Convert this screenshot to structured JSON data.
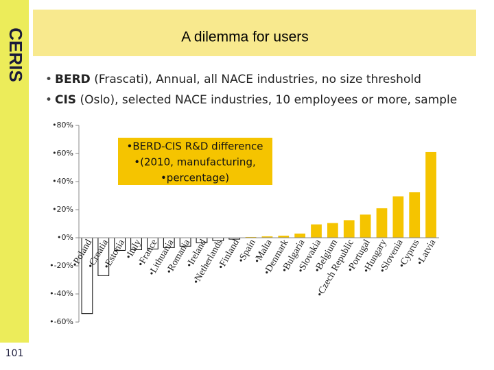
{
  "logo": "CERIS",
  "slide_number": "101",
  "title": "A dilemma for users",
  "bullets": [
    {
      "bold": "BERD",
      "text": "(Frascati), Annual, all NACE industries, no size threshold"
    },
    {
      "bold": "CIS",
      "text": "(Oslo), selected NACE industries, 10 employees or more, sample"
    }
  ],
  "chart_data": {
    "type": "bar",
    "annotation": [
      "•BERD-CIS R&D difference",
      "•(2010, manufacturing,",
      "•percentage)"
    ],
    "categories": [
      "•Poland",
      "•Croatia",
      "•Estonia",
      "•Italy",
      "•France",
      "•Lithuania",
      "•Romania",
      "•Ireland",
      "•Netherlands",
      "•Finland",
      "•Spain",
      "•Malta",
      "•Denmark",
      "•Bulgaria",
      "•Slovakia",
      "•Belgium",
      "•Czech Republic",
      "•Portugal",
      "•Hungary",
      "•Slovenia",
      "•Cyprus",
      "•Latvia"
    ],
    "values": [
      -54,
      -27,
      -9,
      -8.5,
      -8,
      -7,
      -6,
      -3.5,
      -2,
      -1,
      0.5,
      1,
      1.5,
      3,
      9.5,
      10.5,
      12.5,
      16.5,
      21,
      29.5,
      32.5,
      61
    ],
    "color": "#f5c400",
    "negative_color": "#ffffff",
    "ylim": [
      -60,
      80
    ],
    "yticks": [
      {
        "value": 80,
        "label": "•80%"
      },
      {
        "value": 60,
        "label": "•60%"
      },
      {
        "value": 40,
        "label": "•40%"
      },
      {
        "value": 20,
        "label": "•20%"
      },
      {
        "value": 0,
        "label": "•0%"
      },
      {
        "value": -20,
        "label": "•-20%"
      },
      {
        "value": -40,
        "label": "•-40%"
      },
      {
        "value": -60,
        "label": "•-60%"
      }
    ],
    "grid": false
  }
}
